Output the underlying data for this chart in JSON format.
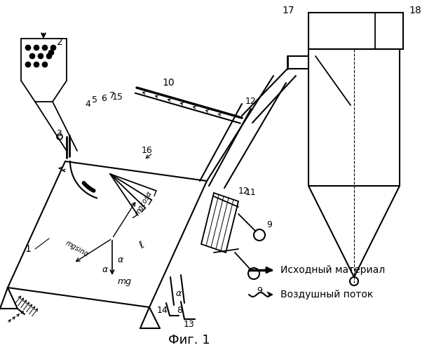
{
  "title": "",
  "fig_label": "Фиг. 1",
  "legend_arrow_label": "Исходный материал",
  "legend_wave_label": "Воздушный поток",
  "bg_color": "#ffffff",
  "lc": "#000000"
}
